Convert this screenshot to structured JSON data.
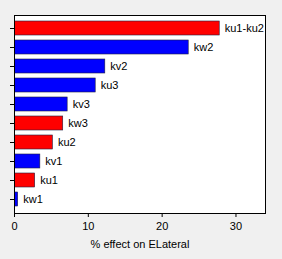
{
  "chart_data": {
    "type": "bar",
    "orientation": "horizontal",
    "categories": [
      "ku1-ku2",
      "kw2",
      "kv2",
      "ku3",
      "kv3",
      "kw3",
      "ku2",
      "kv1",
      "ku1",
      "kw1"
    ],
    "values": [
      27.8,
      23.6,
      12.3,
      11.0,
      7.2,
      6.6,
      5.2,
      3.5,
      2.8,
      0.5
    ],
    "colors": [
      "#ff0000",
      "#0000ff",
      "#0000ff",
      "#0000ff",
      "#0000ff",
      "#ff0000",
      "#ff0000",
      "#0000ff",
      "#ff0000",
      "#0000ff"
    ],
    "x_label": "% effect on ELateral",
    "xlim": [
      0,
      34
    ],
    "xticks": [
      0,
      10,
      20,
      30
    ],
    "tick_labels": "x",
    "grid": false
  }
}
